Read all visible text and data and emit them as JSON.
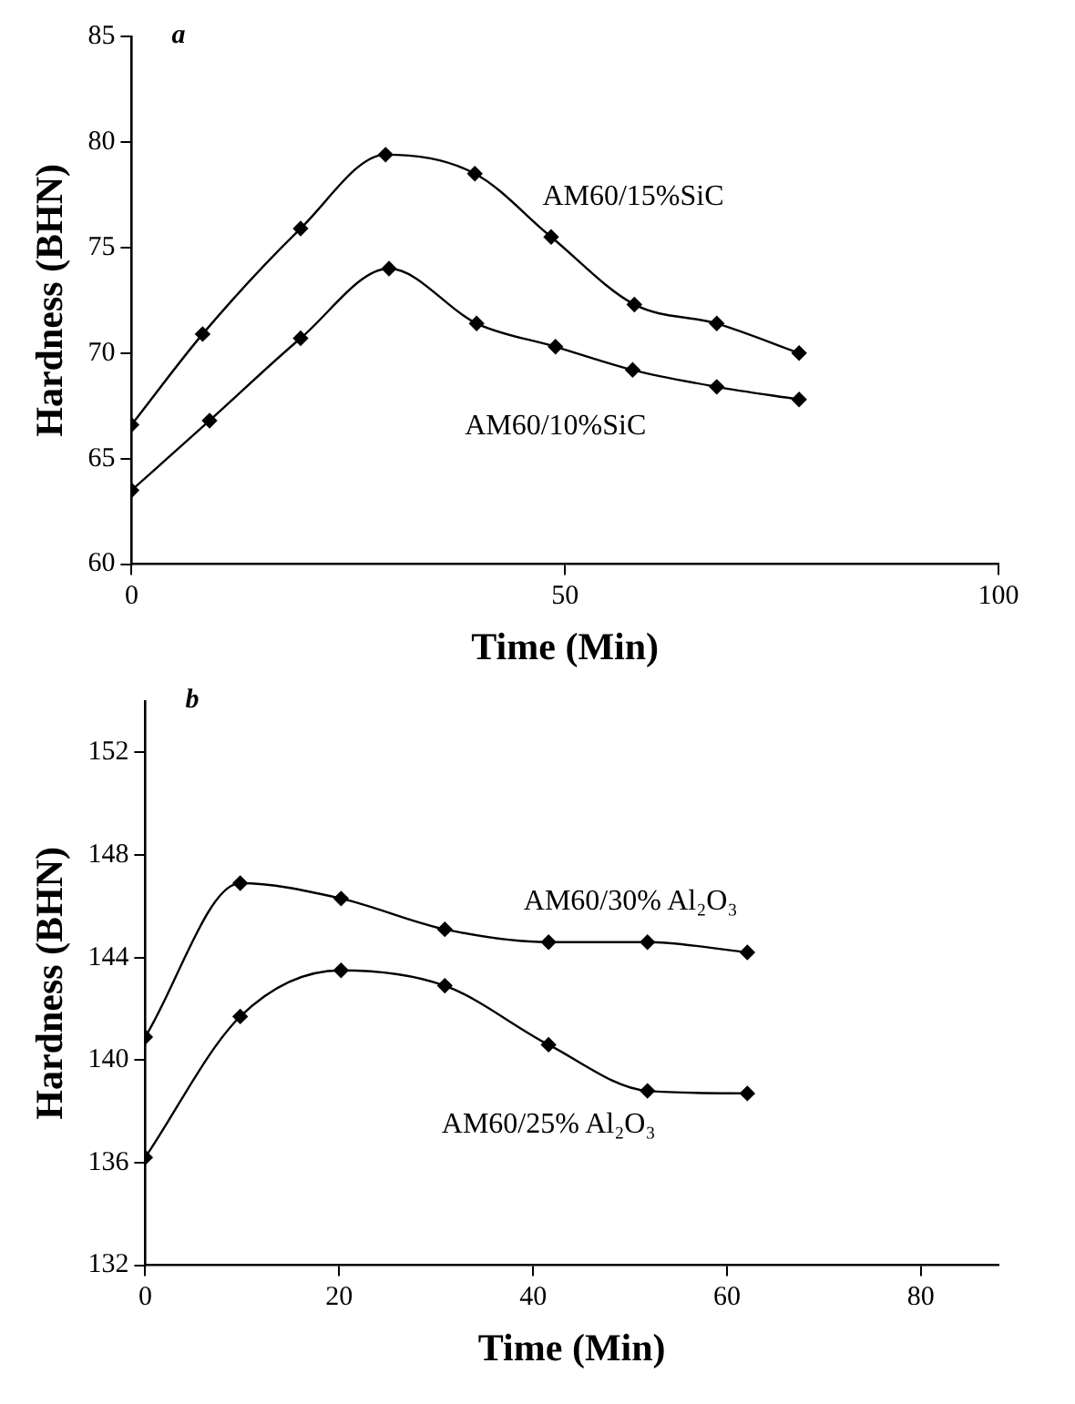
{
  "chart_data": [
    {
      "type": "line",
      "annotations": [
        "a"
      ],
      "xlabel": "Time (Min)",
      "ylabel": "Hardness (BHN)",
      "xlim": [
        0,
        100
      ],
      "xticks": [
        0,
        50,
        100
      ],
      "ylim": [
        60,
        85
      ],
      "yticks": [
        60,
        65,
        70,
        75,
        80,
        85
      ],
      "grid": false,
      "legend": false,
      "marker": "diamond",
      "line_style": "solid",
      "series": [
        {
          "name": "AM60/15%SiC",
          "color": "#000000",
          "x": [
            0,
            8.2,
            19.5,
            29.3,
            39.6,
            48.4,
            58,
            67.5,
            77
          ],
          "values": [
            66.6,
            70.9,
            75.9,
            79.4,
            78.5,
            75.5,
            72.3,
            71.4,
            70.0
          ]
        },
        {
          "name": "AM60/10%SiC",
          "color": "#000000",
          "x": [
            0,
            9,
            19.5,
            29.7,
            39.8,
            48.9,
            57.8,
            67.5,
            77
          ],
          "values": [
            63.5,
            66.8,
            70.7,
            74.0,
            71.4,
            70.3,
            69.2,
            68.4,
            67.8
          ]
        }
      ]
    },
    {
      "type": "line",
      "annotations": [
        "b"
      ],
      "xlabel": "Time (Min)",
      "ylabel": "Hardness (BHN)",
      "xlim": [
        0,
        88
      ],
      "xticks": [
        0,
        20,
        40,
        60,
        80
      ],
      "ylim": [
        132,
        154
      ],
      "yticks": [
        132,
        136,
        140,
        144,
        148,
        152
      ],
      "grid": false,
      "legend": false,
      "marker": "diamond",
      "line_style": "solid",
      "series": [
        {
          "name": "AM60/30% Al₂O₃",
          "color": "#000000",
          "x": [
            0,
            9.8,
            20.2,
            30.9,
            41.6,
            51.8,
            62.1
          ],
          "values": [
            140.9,
            146.9,
            146.3,
            145.1,
            144.6,
            144.6,
            144.2
          ]
        },
        {
          "name": "AM60/25% Al₂O₃",
          "color": "#000000",
          "x": [
            0,
            9.8,
            20.2,
            30.9,
            41.6,
            51.8,
            62.1
          ],
          "values": [
            136.2,
            141.7,
            143.5,
            142.9,
            140.6,
            138.8,
            138.7
          ]
        }
      ]
    }
  ]
}
